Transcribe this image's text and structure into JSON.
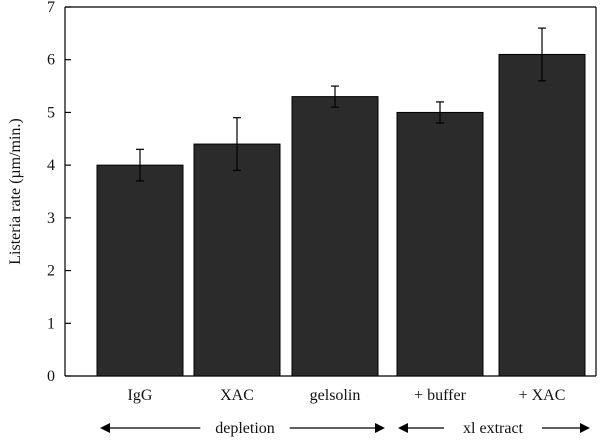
{
  "chart_data": {
    "type": "bar",
    "title": "",
    "xlabel": "",
    "ylabel": "Listeria rate (µm/min.)",
    "ylim": [
      0,
      7
    ],
    "yticks": [
      0,
      1,
      2,
      3,
      4,
      5,
      6,
      7
    ],
    "categories": [
      "IgG",
      "XAC",
      "gelsolin",
      "+ buffer",
      "+ XAC"
    ],
    "values": [
      4.0,
      4.4,
      5.3,
      5.0,
      6.1
    ],
    "error": [
      0.3,
      0.5,
      0.2,
      0.2,
      0.5
    ],
    "bar_color": "#2b2b2b",
    "grid": false,
    "groups": [
      {
        "label": "depletion",
        "categories": [
          "IgG",
          "XAC",
          "gelsolin"
        ]
      },
      {
        "label": "xl extract",
        "categories": [
          "+ buffer",
          "+ XAC"
        ]
      }
    ]
  }
}
